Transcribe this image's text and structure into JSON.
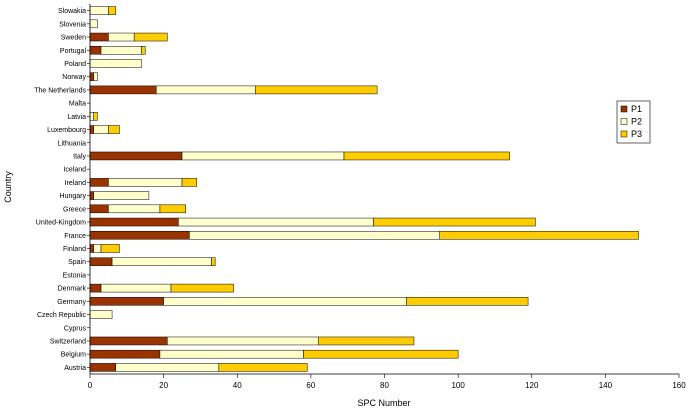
{
  "chart_data": {
    "type": "bar",
    "orientation": "horizontal",
    "stacked": true,
    "title": "",
    "xlabel": "SPC Number",
    "ylabel": "Country",
    "xlim": [
      0,
      160
    ],
    "xticks": [
      0,
      20,
      40,
      60,
      80,
      100,
      120,
      140,
      160
    ],
    "grid": false,
    "legend_position": "right",
    "categories": [
      "Slowakia",
      "Slovenia",
      "Sweden",
      "Portugal",
      "Poland",
      "Norway",
      "The Netherlands",
      "Malta",
      "Latvia",
      "Luxembourg",
      "Lithuania",
      "Italy",
      "Iceland",
      "Ireland",
      "Hungary",
      "Greece",
      "United-Kingdom",
      "France",
      "Finland",
      "Spain",
      "Estonia",
      "Denmark",
      "Germany",
      "Czech Republic",
      "Cyprus",
      "Switzerland",
      "Belgium",
      "Austria"
    ],
    "series": [
      {
        "name": "P1",
        "color": "#993300",
        "values": [
          0,
          0,
          5,
          3,
          0,
          1,
          18,
          0,
          0,
          1,
          0,
          25,
          0,
          5,
          1,
          5,
          24,
          27,
          1,
          6,
          0,
          3,
          20,
          0,
          0,
          21,
          19,
          7
        ]
      },
      {
        "name": "P2",
        "color": "#FFFFCC",
        "values": [
          5,
          2,
          7,
          11,
          14,
          1,
          27,
          0,
          1,
          4,
          0,
          44,
          0,
          20,
          15,
          14,
          53,
          68,
          2,
          27,
          0,
          19,
          66,
          6,
          0,
          41,
          39,
          28
        ]
      },
      {
        "name": "P3",
        "color": "#FFCC00",
        "values": [
          2,
          0,
          9,
          1,
          0,
          0,
          33,
          0,
          1,
          3,
          0,
          45,
          0,
          4,
          0,
          7,
          44,
          54,
          5,
          1,
          0,
          17,
          33,
          0,
          0,
          26,
          42,
          24
        ]
      }
    ]
  }
}
